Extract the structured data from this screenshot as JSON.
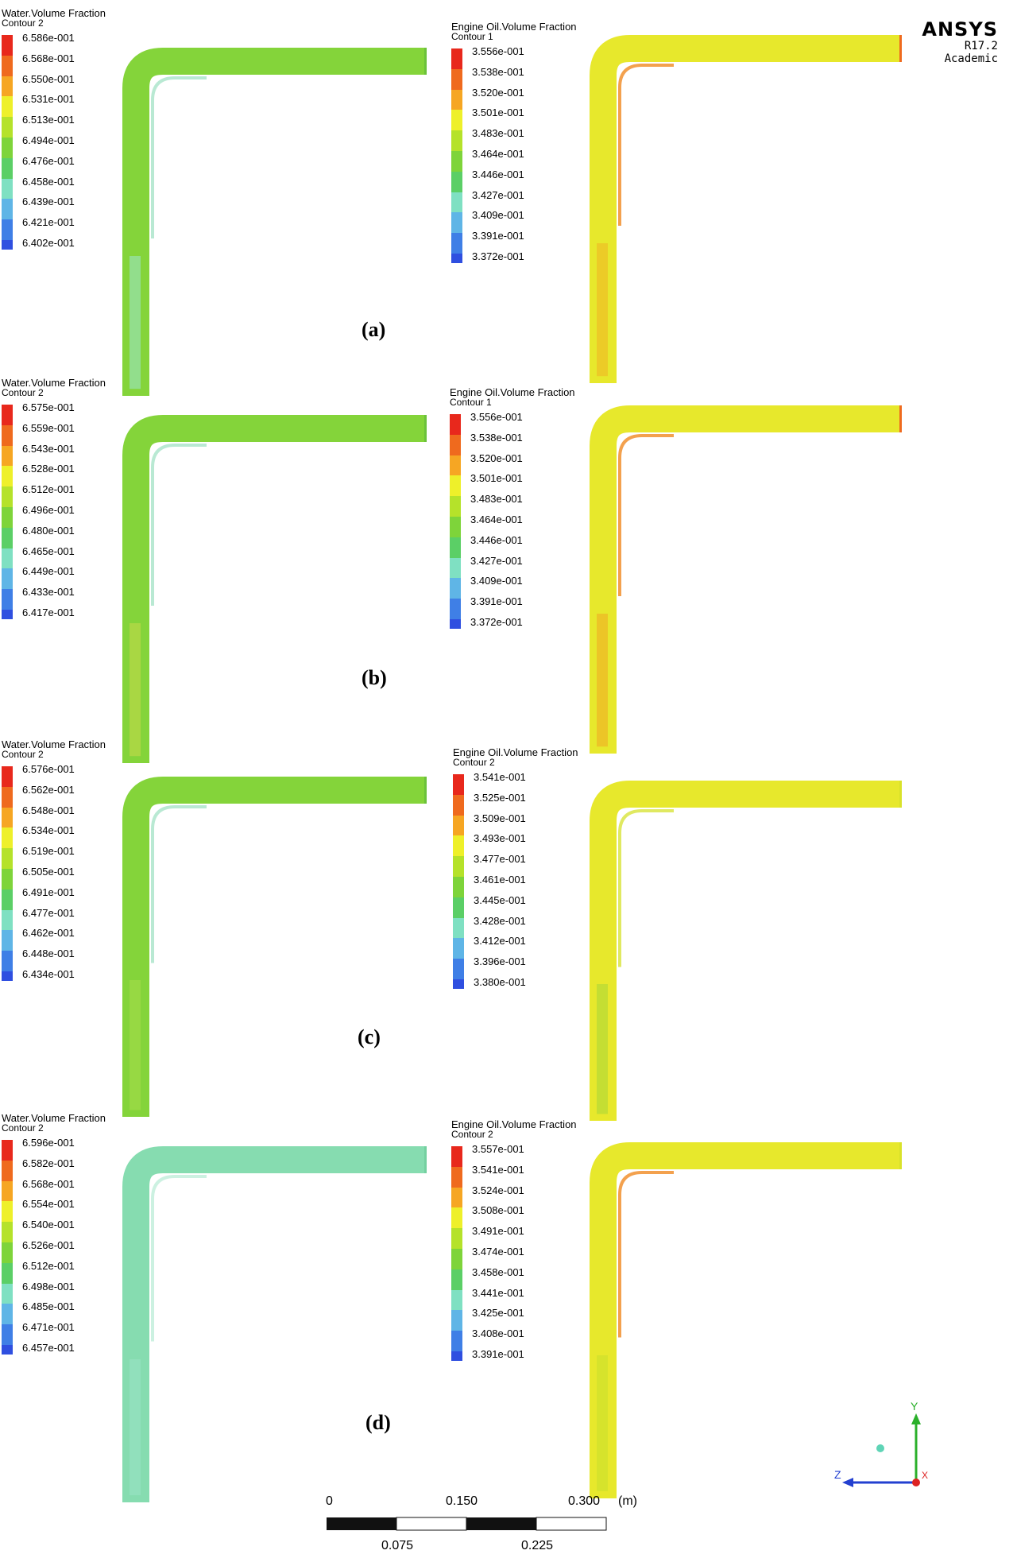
{
  "ansys": {
    "brand": "ANSYS",
    "version": "R17.2",
    "edition": "Academic"
  },
  "panels": [
    {
      "label": "(a)",
      "left": {
        "title": "Water.Volume Fraction",
        "subtitle": "Contour 2",
        "ticks": [
          "6.586e-001",
          "6.568e-001",
          "6.550e-001",
          "6.531e-001",
          "6.513e-001",
          "6.494e-001",
          "6.476e-001",
          "6.458e-001",
          "6.439e-001",
          "6.421e-001",
          "6.402e-001"
        ]
      },
      "right": {
        "title": "Engine Oil.Volume Fraction",
        "subtitle": "Contour 1",
        "ticks": [
          "3.556e-001",
          "3.538e-001",
          "3.520e-001",
          "3.501e-001",
          "3.483e-001",
          "3.464e-001",
          "3.446e-001",
          "3.427e-001",
          "3.409e-001",
          "3.391e-001",
          "3.372e-001"
        ]
      }
    },
    {
      "label": "(b)",
      "left": {
        "title": "Water.Volume Fraction",
        "subtitle": "Contour 2",
        "ticks": [
          "6.575e-001",
          "6.559e-001",
          "6.543e-001",
          "6.528e-001",
          "6.512e-001",
          "6.496e-001",
          "6.480e-001",
          "6.465e-001",
          "6.449e-001",
          "6.433e-001",
          "6.417e-001"
        ]
      },
      "right": {
        "title": "Engine Oil.Volume Fraction",
        "subtitle": "Contour 1",
        "ticks": [
          "3.556e-001",
          "3.538e-001",
          "3.520e-001",
          "3.501e-001",
          "3.483e-001",
          "3.464e-001",
          "3.446e-001",
          "3.427e-001",
          "3.409e-001",
          "3.391e-001",
          "3.372e-001"
        ]
      }
    },
    {
      "label": "(c)",
      "left": {
        "title": "Water.Volume Fraction",
        "subtitle": "Contour 2",
        "ticks": [
          "6.576e-001",
          "6.562e-001",
          "6.548e-001",
          "6.534e-001",
          "6.519e-001",
          "6.505e-001",
          "6.491e-001",
          "6.477e-001",
          "6.462e-001",
          "6.448e-001",
          "6.434e-001"
        ]
      },
      "right": {
        "title": "Engine Oil.Volume Fraction",
        "subtitle": "Contour 2",
        "ticks": [
          "3.541e-001",
          "3.525e-001",
          "3.509e-001",
          "3.493e-001",
          "3.477e-001",
          "3.461e-001",
          "3.445e-001",
          "3.428e-001",
          "3.412e-001",
          "3.396e-001",
          "3.380e-001"
        ]
      }
    },
    {
      "label": "(d)",
      "left": {
        "title": "Water.Volume Fraction",
        "subtitle": "Contour 2",
        "ticks": [
          "6.596e-001",
          "6.582e-001",
          "6.568e-001",
          "6.554e-001",
          "6.540e-001",
          "6.526e-001",
          "6.512e-001",
          "6.498e-001",
          "6.485e-001",
          "6.471e-001",
          "6.457e-001"
        ]
      },
      "right": {
        "title": "Engine Oil.Volume Fraction",
        "subtitle": "Contour 2",
        "ticks": [
          "3.557e-001",
          "3.541e-001",
          "3.524e-001",
          "3.508e-001",
          "3.491e-001",
          "3.474e-001",
          "3.458e-001",
          "3.441e-001",
          "3.425e-001",
          "3.408e-001",
          "3.391e-001"
        ]
      }
    }
  ],
  "colormap": [
    "#e8281c",
    "#ef6a1e",
    "#f6a623",
    "#eef02a",
    "#b5e22a",
    "#7ed43a",
    "#5bcf66",
    "#7fe0c2",
    "#5fb5e6",
    "#3f7fe6",
    "#2f4fe0"
  ],
  "scale": {
    "top_labels": [
      "0",
      "0.150",
      "0.300"
    ],
    "bottom_labels": [
      "0.075",
      "0.225"
    ],
    "unit": "(m)"
  },
  "triad": {
    "y": "Y",
    "z": "Z",
    "x": "X"
  }
}
